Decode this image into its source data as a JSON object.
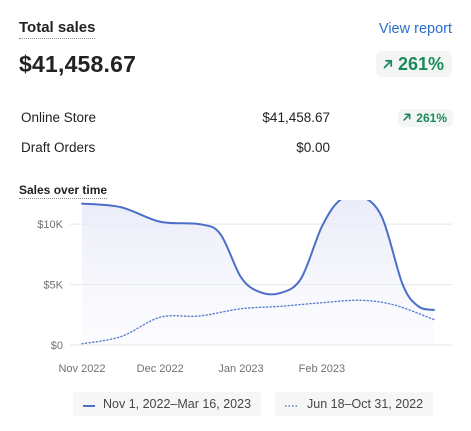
{
  "header": {
    "title": "Total sales",
    "view_report": "View report",
    "total": "$41,458.67",
    "change": "261%",
    "change_icon": "arrow-up-right-icon"
  },
  "breakdown": [
    {
      "name": "Online Store",
      "amount": "$41,458.67",
      "change": "261%"
    },
    {
      "name": "Draft Orders",
      "amount": "$0.00",
      "change": ""
    }
  ],
  "colors": {
    "primary": "#4b6fc9",
    "comparison": "#5b7fd0",
    "positive": "#1d8a5c",
    "link": "#2c6ecb"
  },
  "chart_data": {
    "type": "line",
    "title": "Sales over time",
    "x_tick_labels": [
      "Nov 2022",
      "Dec 2022",
      "Jan 2023",
      "Feb 2023"
    ],
    "y_tick_labels": [
      "$0",
      "$5K",
      "$10K"
    ],
    "ylim": [
      0,
      12000
    ],
    "grid": true,
    "legend_position": "bottom",
    "series": [
      {
        "name": "Nov 1, 2022–Mar 16, 2023",
        "style": "solid",
        "x": [
          "2022-11-01",
          "2022-11-16",
          "2022-12-01",
          "2022-12-16",
          "2022-12-24",
          "2023-01-01",
          "2023-01-08",
          "2023-01-16",
          "2023-01-24",
          "2023-02-01",
          "2023-02-08",
          "2023-02-16",
          "2023-02-24",
          "2023-03-04",
          "2023-03-10",
          "2023-03-16"
        ],
        "values": [
          11700,
          11400,
          10200,
          10000,
          9200,
          5600,
          4400,
          4300,
          5500,
          9800,
          12000,
          12300,
          10600,
          5000,
          3200,
          2900
        ]
      },
      {
        "name": "Jun 18–Oct 31, 2022",
        "style": "dotted",
        "x": [
          "2022-11-01",
          "2022-11-16",
          "2022-12-01",
          "2022-12-16",
          "2023-01-01",
          "2023-01-16",
          "2023-02-01",
          "2023-02-16",
          "2023-03-01",
          "2023-03-16"
        ],
        "values": [
          100,
          700,
          2300,
          2400,
          3000,
          3200,
          3500,
          3700,
          3300,
          2100
        ]
      }
    ]
  }
}
